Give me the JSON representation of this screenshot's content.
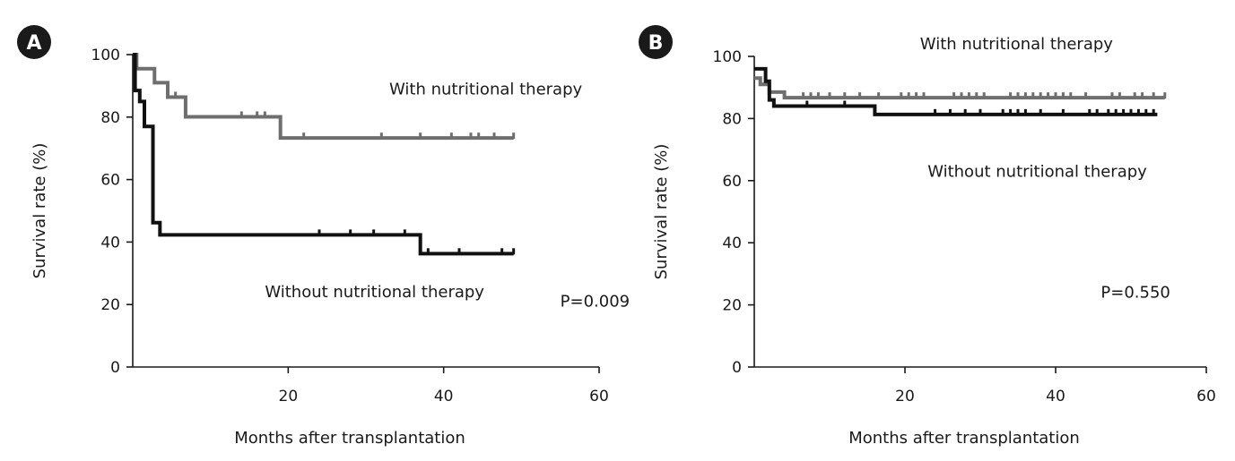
{
  "chart_data": [
    {
      "panel_label": "A",
      "type": "line",
      "xlabel": "Months after transplantation",
      "ylabel": "Survival rate (%)",
      "xlim": [
        0,
        60
      ],
      "ylim": [
        0,
        100
      ],
      "xticks": [
        20,
        40,
        60
      ],
      "yticks": [
        0,
        20,
        40,
        60,
        80,
        100
      ],
      "grid": false,
      "annotations": [
        {
          "text": "With nutritional therapy",
          "x": 33,
          "y": 89
        },
        {
          "text": "Without nutritional therapy",
          "x": 17,
          "y": 24
        },
        {
          "text": "P=0.009",
          "x": 55,
          "y": 21
        }
      ],
      "series": [
        {
          "name": "With nutritional therapy",
          "color": "#6e6e6e",
          "steps": [
            [
              0,
              100
            ],
            [
              0.5,
              95.5
            ],
            [
              2.8,
              91
            ],
            [
              4.5,
              86.4
            ],
            [
              6.8,
              80.1
            ],
            [
              19,
              73.3
            ],
            [
              49,
              73.3
            ]
          ],
          "censored": [
            [
              5.5,
              86.4
            ],
            [
              14,
              80.1
            ],
            [
              16,
              80.1
            ],
            [
              17,
              80.1
            ],
            [
              22,
              73.3
            ],
            [
              32,
              73.3
            ],
            [
              37,
              73.3
            ],
            [
              41,
              73.3
            ],
            [
              43.5,
              73.3
            ],
            [
              44.5,
              73.3
            ],
            [
              46.5,
              73.3
            ],
            [
              49,
              73.3
            ]
          ]
        },
        {
          "name": "Without nutritional therapy",
          "color": "#111111",
          "steps": [
            [
              0,
              100
            ],
            [
              0.3,
              88.5
            ],
            [
              0.9,
              85
            ],
            [
              1.5,
              77
            ],
            [
              2.6,
              46.2
            ],
            [
              3.5,
              42.3
            ],
            [
              37,
              36.3
            ],
            [
              49,
              36.3
            ]
          ],
          "censored": [
            [
              24,
              42.3
            ],
            [
              28,
              42.3
            ],
            [
              31,
              42.3
            ],
            [
              35,
              42.3
            ],
            [
              38,
              36.3
            ],
            [
              42,
              36.3
            ],
            [
              47.5,
              36.3
            ],
            [
              49,
              36.3
            ]
          ]
        }
      ]
    },
    {
      "panel_label": "B",
      "type": "line",
      "xlabel": "Months after transplantation",
      "ylabel": "Survival rate (%)",
      "xlim": [
        0,
        60
      ],
      "ylim": [
        0,
        100
      ],
      "xticks": [
        20,
        40,
        60
      ],
      "yticks": [
        0,
        20,
        40,
        60,
        80,
        100
      ],
      "grid": false,
      "annotations": [
        {
          "text": "With nutritional therapy",
          "x": 22,
          "y": 104
        },
        {
          "text": "Without nutritional therapy",
          "x": 23,
          "y": 63
        },
        {
          "text": "P=0.550",
          "x": 46,
          "y": 24
        }
      ],
      "series": [
        {
          "name": "With nutritional therapy",
          "color": "#6e6e6e",
          "steps": [
            [
              0,
              93
            ],
            [
              0.8,
              91
            ],
            [
              2,
              88.5
            ],
            [
              4,
              86.7
            ],
            [
              54.5,
              86.7
            ]
          ],
          "censored": [
            [
              6.5,
              86.7
            ],
            [
              7.5,
              86.7
            ],
            [
              8.5,
              86.7
            ],
            [
              10,
              86.7
            ],
            [
              12,
              86.7
            ],
            [
              14,
              86.7
            ],
            [
              16.5,
              86.7
            ],
            [
              19.5,
              86.7
            ],
            [
              20.5,
              86.7
            ],
            [
              21.5,
              86.7
            ],
            [
              22.5,
              86.7
            ],
            [
              26.5,
              86.7
            ],
            [
              27.5,
              86.7
            ],
            [
              28.5,
              86.7
            ],
            [
              29.5,
              86.7
            ],
            [
              30.5,
              86.7
            ],
            [
              34,
              86.7
            ],
            [
              35,
              86.7
            ],
            [
              36,
              86.7
            ],
            [
              37,
              86.7
            ],
            [
              38,
              86.7
            ],
            [
              39,
              86.7
            ],
            [
              40,
              86.7
            ],
            [
              41,
              86.7
            ],
            [
              42,
              86.7
            ],
            [
              44,
              86.7
            ],
            [
              47.5,
              86.7
            ],
            [
              48.5,
              86.7
            ],
            [
              50.5,
              86.7
            ],
            [
              51.5,
              86.7
            ],
            [
              53,
              86.7
            ],
            [
              54.5,
              86.7
            ]
          ]
        },
        {
          "name": "Without nutritional therapy",
          "color": "#111111",
          "steps": [
            [
              0,
              96
            ],
            [
              1.5,
              92
            ],
            [
              2,
              86
            ],
            [
              2.6,
              84
            ],
            [
              16,
              81.3
            ],
            [
              53.5,
              81.3
            ]
          ],
          "censored": [
            [
              7,
              84
            ],
            [
              12,
              84
            ],
            [
              24,
              81.3
            ],
            [
              26,
              81.3
            ],
            [
              28,
              81.3
            ],
            [
              30,
              81.3
            ],
            [
              33,
              81.3
            ],
            [
              34,
              81.3
            ],
            [
              35,
              81.3
            ],
            [
              36,
              81.3
            ],
            [
              38,
              81.3
            ],
            [
              41,
              81.3
            ],
            [
              44.5,
              81.3
            ],
            [
              45.5,
              81.3
            ],
            [
              47,
              81.3
            ],
            [
              48,
              81.3
            ],
            [
              49,
              81.3
            ],
            [
              50,
              81.3
            ],
            [
              51,
              81.3
            ],
            [
              52,
              81.3
            ],
            [
              53,
              81.3
            ]
          ]
        }
      ]
    }
  ]
}
